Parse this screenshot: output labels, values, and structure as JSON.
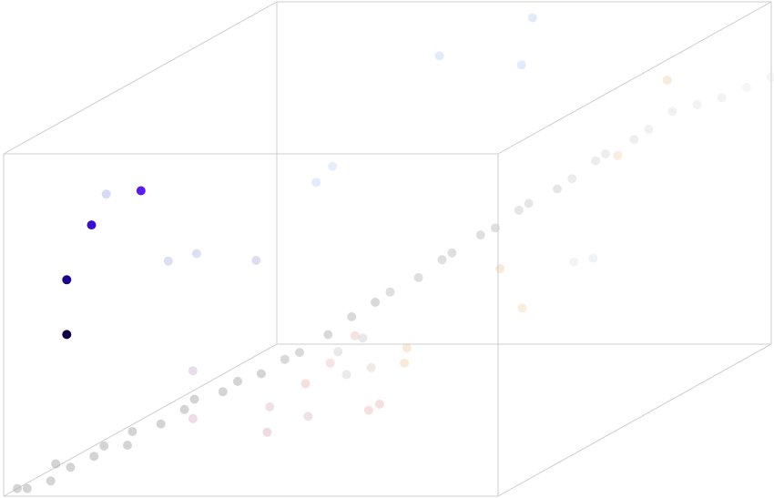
{
  "chart_data": {
    "type": "scatter",
    "projection": "3d-box",
    "grid": false,
    "legend": "none",
    "title": "",
    "xlabel": "",
    "ylabel": "",
    "zlabel": "",
    "xlim": [
      0,
      1
    ],
    "ylim": [
      0,
      1
    ],
    "zlim": [
      0,
      1
    ],
    "box_color": "#cccccc",
    "points": [
      {
        "x": 0.1,
        "y": 0.05,
        "z": 0.45,
        "color": "#100048",
        "opacity": 1.0
      },
      {
        "x": 0.1,
        "y": 0.05,
        "z": 0.61,
        "color": "#1c0690",
        "opacity": 1.0
      },
      {
        "x": 0.15,
        "y": 0.05,
        "z": 0.77,
        "color": "#3a0ed0",
        "opacity": 1.0
      },
      {
        "x": 0.25,
        "y": 0.05,
        "z": 0.87,
        "color": "#5a1af0",
        "opacity": 1.0
      },
      {
        "x": 0.18,
        "y": 0.05,
        "z": 0.86,
        "color": "#9aa8e8",
        "opacity": 0.4
      },
      {
        "x": 0.28,
        "y": 0.2,
        "z": 0.62,
        "color": "#9aa0e0",
        "opacity": 0.35
      },
      {
        "x": 0.25,
        "y": 0.15,
        "z": 0.62,
        "color": "#9aa0e0",
        "opacity": 0.35
      },
      {
        "x": 0.4,
        "y": 0.2,
        "z": 0.6,
        "color": "#a898d8",
        "opacity": 0.35
      },
      {
        "x": 0.4,
        "y": 0.42,
        "z": 0.73,
        "color": "#a8c8f0",
        "opacity": 0.35
      },
      {
        "x": 0.4,
        "y": 0.48,
        "z": 0.75,
        "color": "#a8c8f0",
        "opacity": 0.3
      },
      {
        "x": 0.55,
        "y": 0.6,
        "z": 1.02,
        "color": "#a8c8f0",
        "opacity": 0.35
      },
      {
        "x": 0.6,
        "y": 0.85,
        "z": 1.02,
        "color": "#a8c8f0",
        "opacity": 0.35
      },
      {
        "x": 0.55,
        "y": 0.9,
        "z": 0.86,
        "color": "#a8c8f0",
        "opacity": 0.35
      },
      {
        "x": 0.9,
        "y": 0.8,
        "z": 0.86,
        "color": "#f0c8a0",
        "opacity": 0.4
      },
      {
        "x": 0.8,
        "y": 0.8,
        "z": 0.64,
        "color": "#f0c8a0",
        "opacity": 0.3
      },
      {
        "x": 0.7,
        "y": 0.55,
        "z": 0.42,
        "color": "#f0c8a0",
        "opacity": 0.4
      },
      {
        "x": 0.8,
        "y": 0.45,
        "z": 0.35,
        "color": "#f0d8a0",
        "opacity": 0.4
      },
      {
        "x": 0.65,
        "y": 0.3,
        "z": 0.3,
        "color": "#f0c8a0",
        "opacity": 0.4
      },
      {
        "x": 0.7,
        "y": 0.2,
        "z": 0.3,
        "color": "#f0c8a0",
        "opacity": 0.4
      },
      {
        "x": 0.6,
        "y": 0.2,
        "z": 0.38,
        "color": "#e8b8b0",
        "opacity": 0.4
      },
      {
        "x": 0.55,
        "y": 0.2,
        "z": 0.3,
        "color": "#e8b0b0",
        "opacity": 0.35
      },
      {
        "x": 0.5,
        "y": 0.2,
        "z": 0.24,
        "color": "#e8b0b0",
        "opacity": 0.4
      },
      {
        "x": 0.65,
        "y": 0.2,
        "z": 0.18,
        "color": "#e8b0b0",
        "opacity": 0.4
      },
      {
        "x": 0.6,
        "y": 0.25,
        "z": 0.14,
        "color": "#e8b0b0",
        "opacity": 0.4
      },
      {
        "x": 0.45,
        "y": 0.15,
        "z": 0.12,
        "color": "#d8a8b8",
        "opacity": 0.4
      },
      {
        "x": 0.4,
        "y": 0.25,
        "z": 0.15,
        "color": "#d8a8b8",
        "opacity": 0.35
      },
      {
        "x": 0.45,
        "y": 0.3,
        "z": 0.1,
        "color": "#d8a8b8",
        "opacity": 0.35
      },
      {
        "x": 0.3,
        "y": 0.15,
        "z": 0.16,
        "color": "#d8a8c0",
        "opacity": 0.4
      },
      {
        "x": 0.3,
        "y": 0.15,
        "z": 0.3,
        "color": "#c8a8d0",
        "opacity": 0.4
      },
      {
        "x": 0.55,
        "y": 0.35,
        "z": 0.22,
        "color": "#d8c0b0",
        "opacity": 0.35
      },
      {
        "x": 0.5,
        "y": 0.35,
        "z": 0.2,
        "color": "#c8c0c0",
        "opacity": 0.35
      },
      {
        "x": 0.45,
        "y": 0.5,
        "z": 0.24,
        "color": "#c0c0c0",
        "opacity": 0.35
      },
      {
        "x": 0.4,
        "y": 0.5,
        "z": 0.2,
        "color": "#c0c0c0",
        "opacity": 0.35
      },
      {
        "x": 0.75,
        "y": 0.8,
        "z": 0.34,
        "color": "#c8d8e8",
        "opacity": 0.3
      },
      {
        "x": 0.85,
        "y": 0.55,
        "z": 0.44,
        "color": "#e0e0e0",
        "opacity": 0.35
      },
      {
        "x": 0.0,
        "y": 0.05,
        "z": 0.0,
        "color": "#aaaaaa",
        "opacity": 0.5
      },
      {
        "x": 0.02,
        "y": 0.05,
        "z": 0.0,
        "color": "#aaaaaa",
        "opacity": 0.5
      },
      {
        "x": 0.04,
        "y": 0.1,
        "z": 0.0,
        "color": "#aaaaaa",
        "opacity": 0.5
      },
      {
        "x": 0.05,
        "y": 0.1,
        "z": 0.05,
        "color": "#aaaaaa",
        "opacity": 0.5
      },
      {
        "x": 0.08,
        "y": 0.1,
        "z": 0.04,
        "color": "#aaaaaa",
        "opacity": 0.5
      },
      {
        "x": 0.1,
        "y": 0.15,
        "z": 0.05,
        "color": "#aaaaaa",
        "opacity": 0.5
      },
      {
        "x": 0.12,
        "y": 0.15,
        "z": 0.08,
        "color": "#aaaaaa",
        "opacity": 0.5
      },
      {
        "x": 0.14,
        "y": 0.2,
        "z": 0.06,
        "color": "#aaaaaa",
        "opacity": 0.5
      },
      {
        "x": 0.15,
        "y": 0.2,
        "z": 0.1,
        "color": "#aaaaaa",
        "opacity": 0.5
      },
      {
        "x": 0.18,
        "y": 0.25,
        "z": 0.1,
        "color": "#aaaaaa",
        "opacity": 0.5
      },
      {
        "x": 0.2,
        "y": 0.3,
        "z": 0.12,
        "color": "#aaaaaa",
        "opacity": 0.5
      },
      {
        "x": 0.22,
        "y": 0.3,
        "z": 0.15,
        "color": "#aaaaaa",
        "opacity": 0.5
      },
      {
        "x": 0.25,
        "y": 0.35,
        "z": 0.15,
        "color": "#aaaaaa",
        "opacity": 0.5
      },
      {
        "x": 0.28,
        "y": 0.35,
        "z": 0.18,
        "color": "#aaaaaa",
        "opacity": 0.5
      },
      {
        "x": 0.3,
        "y": 0.4,
        "z": 0.18,
        "color": "#aaaaaa",
        "opacity": 0.5
      },
      {
        "x": 0.32,
        "y": 0.45,
        "z": 0.2,
        "color": "#aaaaaa",
        "opacity": 0.45
      },
      {
        "x": 0.35,
        "y": 0.45,
        "z": 0.22,
        "color": "#aaaaaa",
        "opacity": 0.45
      },
      {
        "x": 0.38,
        "y": 0.5,
        "z": 0.25,
        "color": "#aaaaaa",
        "opacity": 0.45
      },
      {
        "x": 0.4,
        "y": 0.55,
        "z": 0.28,
        "color": "#aaaaaa",
        "opacity": 0.45
      },
      {
        "x": 0.42,
        "y": 0.6,
        "z": 0.3,
        "color": "#aaaaaa",
        "opacity": 0.45
      },
      {
        "x": 0.45,
        "y": 0.6,
        "z": 0.33,
        "color": "#b0b0b0",
        "opacity": 0.4
      },
      {
        "x": 0.48,
        "y": 0.65,
        "z": 0.35,
        "color": "#b0b0b0",
        "opacity": 0.4
      },
      {
        "x": 0.5,
        "y": 0.7,
        "z": 0.38,
        "color": "#b0b0b0",
        "opacity": 0.4
      },
      {
        "x": 0.52,
        "y": 0.7,
        "z": 0.4,
        "color": "#b0b0b0",
        "opacity": 0.4
      },
      {
        "x": 0.55,
        "y": 0.75,
        "z": 0.43,
        "color": "#b0b0b0",
        "opacity": 0.4
      },
      {
        "x": 0.58,
        "y": 0.75,
        "z": 0.45,
        "color": "#b0b0b0",
        "opacity": 0.4
      },
      {
        "x": 0.6,
        "y": 0.8,
        "z": 0.48,
        "color": "#b8b8b8",
        "opacity": 0.35
      },
      {
        "x": 0.62,
        "y": 0.8,
        "z": 0.5,
        "color": "#b8b8b8",
        "opacity": 0.35
      },
      {
        "x": 0.65,
        "y": 0.85,
        "z": 0.52,
        "color": "#b8b8b8",
        "opacity": 0.35
      },
      {
        "x": 0.68,
        "y": 0.85,
        "z": 0.55,
        "color": "#c0c0c0",
        "opacity": 0.3
      },
      {
        "x": 0.7,
        "y": 0.9,
        "z": 0.58,
        "color": "#c0c0c0",
        "opacity": 0.3
      },
      {
        "x": 0.72,
        "y": 0.9,
        "z": 0.6,
        "color": "#c8c8c8",
        "opacity": 0.3
      },
      {
        "x": 0.75,
        "y": 0.95,
        "z": 0.62,
        "color": "#c8c8c8",
        "opacity": 0.3
      },
      {
        "x": 0.78,
        "y": 0.95,
        "z": 0.65,
        "color": "#d0d0d0",
        "opacity": 0.3
      },
      {
        "x": 0.8,
        "y": 1.0,
        "z": 0.68,
        "color": "#d0d0d0",
        "opacity": 0.3
      },
      {
        "x": 0.85,
        "y": 1.0,
        "z": 0.7,
        "color": "#d8d8d8",
        "opacity": 0.3
      },
      {
        "x": 0.9,
        "y": 1.0,
        "z": 0.72,
        "color": "#d8d8d8",
        "opacity": 0.3
      },
      {
        "x": 0.95,
        "y": 1.0,
        "z": 0.75,
        "color": "#e0e0e0",
        "opacity": 0.3
      },
      {
        "x": 1.0,
        "y": 1.0,
        "z": 0.78,
        "color": "#e0e0e0",
        "opacity": 0.3
      }
    ]
  }
}
